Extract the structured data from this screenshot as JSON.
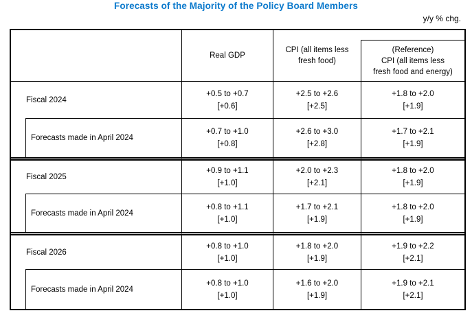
{
  "page": {
    "title": "Forecasts of the Majority of the Policy Board Members",
    "unit_note": "y/y % chg."
  },
  "colors": {
    "title_blue": "#0b79cc",
    "border_black": "#000000",
    "background": "#ffffff"
  },
  "table": {
    "header": {
      "row_label": "",
      "real_gdp": "Real GDP",
      "cpi_line1": "CPI (all items less",
      "cpi_line2": "fresh food)",
      "ref_line1": "(Reference)",
      "ref_line2": "CPI (all items less",
      "ref_line3": "fresh food and energy)"
    },
    "rows": [
      {
        "label": "Fiscal 2024",
        "indent": false,
        "gdp_range": "+0.5 to +0.7",
        "gdp_central": "[+0.6]",
        "cpi_range": "+2.5 to +2.6",
        "cpi_central": "[+2.5]",
        "ref_range": "+1.8 to +2.0",
        "ref_central": "[+1.9]"
      },
      {
        "label": "Forecasts made in April 2024",
        "indent": true,
        "gdp_range": "+0.7 to +1.0",
        "gdp_central": "[+0.8]",
        "cpi_range": "+2.6 to +3.0",
        "cpi_central": "[+2.8]",
        "ref_range": "+1.7 to +2.1",
        "ref_central": "[+1.9]"
      },
      {
        "label": "Fiscal 2025",
        "indent": false,
        "gdp_range": "+0.9 to +1.1",
        "gdp_central": "[+1.0]",
        "cpi_range": "+2.0 to +2.3",
        "cpi_central": "[+2.1]",
        "ref_range": "+1.8 to +2.0",
        "ref_central": "[+1.9]"
      },
      {
        "label": "Forecasts made in April 2024",
        "indent": true,
        "gdp_range": "+0.8 to +1.1",
        "gdp_central": "[+1.0]",
        "cpi_range": "+1.7 to +2.1",
        "cpi_central": "[+1.9]",
        "ref_range": "+1.8 to +2.0",
        "ref_central": "[+1.9]"
      },
      {
        "label": "Fiscal 2026",
        "indent": false,
        "gdp_range": "+0.8 to +1.0",
        "gdp_central": "[+1.0]",
        "cpi_range": "+1.8 to +2.0",
        "cpi_central": "[+1.9]",
        "ref_range": "+1.9 to +2.2",
        "ref_central": "[+2.1]"
      },
      {
        "label": "Forecasts made in April 2024",
        "indent": true,
        "gdp_range": "+0.8 to +1.0",
        "gdp_central": "[+1.0]",
        "cpi_range": "+1.6 to +2.0",
        "cpi_central": "[+1.9]",
        "ref_range": "+1.9 to +2.1",
        "ref_central": "[+2.1]"
      }
    ]
  }
}
